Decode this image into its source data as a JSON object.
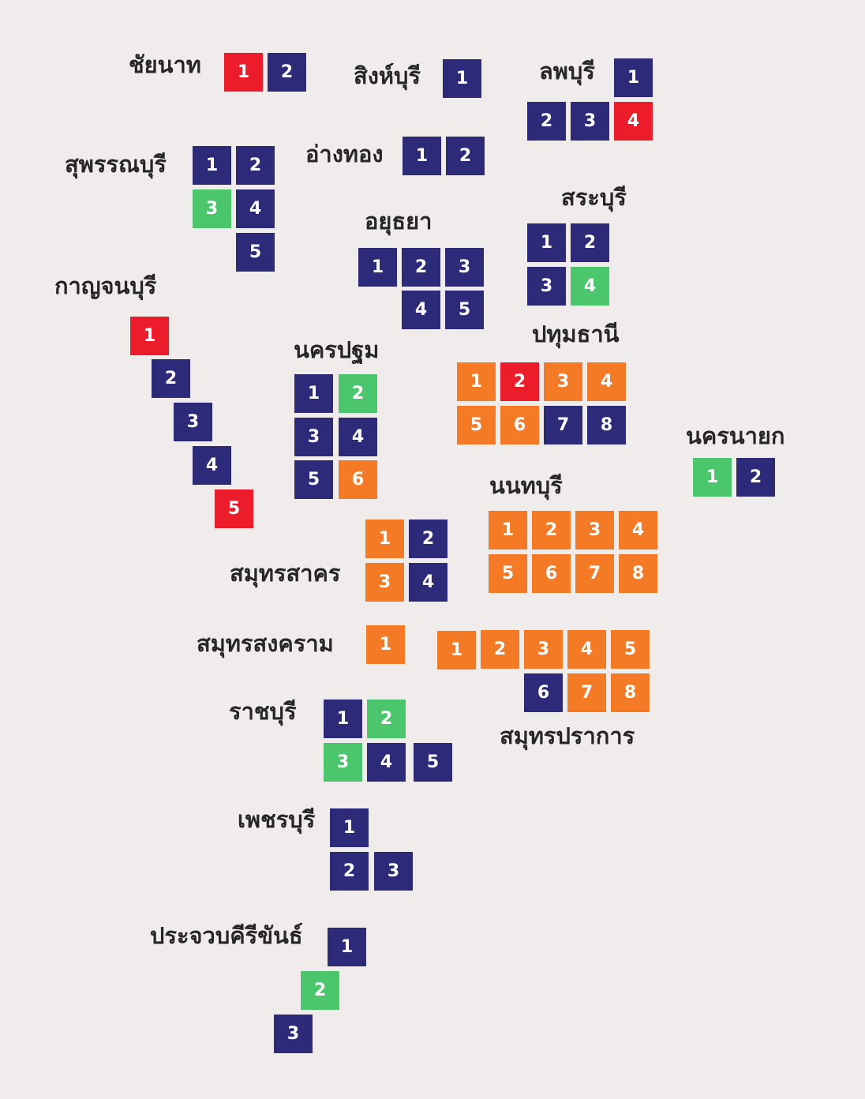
{
  "colors": {
    "background": "#f1ecec",
    "label": "#262626",
    "party_colors": {
      "navy": "#2e2a7a",
      "red": "#ec1c2b",
      "orange": "#f47a25",
      "green": "#4cc66c"
    }
  },
  "provinces": [
    {
      "name": "ชัยนาท",
      "districts": [
        {
          "number": "1",
          "color": "red"
        },
        {
          "number": "2",
          "color": "navy"
        }
      ]
    },
    {
      "name": "สิงห์บุรี",
      "districts": [
        {
          "number": "1",
          "color": "navy"
        }
      ]
    },
    {
      "name": "ลพบุรี",
      "districts": [
        {
          "number": "1",
          "color": "navy"
        },
        {
          "number": "2",
          "color": "navy"
        },
        {
          "number": "3",
          "color": "navy"
        },
        {
          "number": "4",
          "color": "red"
        }
      ]
    },
    {
      "name": "สุพรรณบุรี",
      "districts": [
        {
          "number": "1",
          "color": "navy"
        },
        {
          "number": "2",
          "color": "navy"
        },
        {
          "number": "3",
          "color": "green"
        },
        {
          "number": "4",
          "color": "navy"
        },
        {
          "number": "5",
          "color": "navy"
        }
      ]
    },
    {
      "name": "อ่างทอง",
      "districts": [
        {
          "number": "1",
          "color": "navy"
        },
        {
          "number": "2",
          "color": "navy"
        }
      ]
    },
    {
      "name": "สระบุรี",
      "districts": [
        {
          "number": "1",
          "color": "navy"
        },
        {
          "number": "2",
          "color": "navy"
        },
        {
          "number": "3",
          "color": "navy"
        },
        {
          "number": "4",
          "color": "green"
        }
      ]
    },
    {
      "name": "อยุธยา",
      "districts": [
        {
          "number": "1",
          "color": "navy"
        },
        {
          "number": "2",
          "color": "navy"
        },
        {
          "number": "3",
          "color": "navy"
        },
        {
          "number": "4",
          "color": "navy"
        },
        {
          "number": "5",
          "color": "navy"
        }
      ]
    },
    {
      "name": "กาญจนบุรี",
      "districts": [
        {
          "number": "1",
          "color": "red"
        },
        {
          "number": "2",
          "color": "navy"
        },
        {
          "number": "3",
          "color": "navy"
        },
        {
          "number": "4",
          "color": "navy"
        },
        {
          "number": "5",
          "color": "red"
        }
      ]
    },
    {
      "name": "นครปฐม",
      "districts": [
        {
          "number": "1",
          "color": "navy"
        },
        {
          "number": "2",
          "color": "green"
        },
        {
          "number": "3",
          "color": "navy"
        },
        {
          "number": "4",
          "color": "navy"
        },
        {
          "number": "5",
          "color": "navy"
        },
        {
          "number": "6",
          "color": "orange"
        }
      ]
    },
    {
      "name": "ปทุมธานี",
      "districts": [
        {
          "number": "1",
          "color": "orange"
        },
        {
          "number": "2",
          "color": "red"
        },
        {
          "number": "3",
          "color": "orange"
        },
        {
          "number": "4",
          "color": "orange"
        },
        {
          "number": "5",
          "color": "orange"
        },
        {
          "number": "6",
          "color": "orange"
        },
        {
          "number": "7",
          "color": "navy"
        },
        {
          "number": "8",
          "color": "navy"
        }
      ]
    },
    {
      "name": "นครนายก",
      "districts": [
        {
          "number": "1",
          "color": "green"
        },
        {
          "number": "2",
          "color": "navy"
        }
      ]
    },
    {
      "name": "นนทบุรี",
      "districts": [
        {
          "number": "1",
          "color": "orange"
        },
        {
          "number": "2",
          "color": "orange"
        },
        {
          "number": "3",
          "color": "orange"
        },
        {
          "number": "4",
          "color": "orange"
        },
        {
          "number": "5",
          "color": "orange"
        },
        {
          "number": "6",
          "color": "orange"
        },
        {
          "number": "7",
          "color": "orange"
        },
        {
          "number": "8",
          "color": "orange"
        }
      ]
    },
    {
      "name": "สมุทรสาคร",
      "districts": [
        {
          "number": "1",
          "color": "orange"
        },
        {
          "number": "2",
          "color": "navy"
        },
        {
          "number": "3",
          "color": "orange"
        },
        {
          "number": "4",
          "color": "navy"
        }
      ]
    },
    {
      "name": "สมุทรสงคราม",
      "districts": [
        {
          "number": "1",
          "color": "orange"
        }
      ]
    },
    {
      "name": "สมุทรปราการ",
      "districts": [
        {
          "number": "1",
          "color": "orange"
        },
        {
          "number": "2",
          "color": "orange"
        },
        {
          "number": "3",
          "color": "orange"
        },
        {
          "number": "4",
          "color": "orange"
        },
        {
          "number": "5",
          "color": "orange"
        },
        {
          "number": "6",
          "color": "navy"
        },
        {
          "number": "7",
          "color": "orange"
        },
        {
          "number": "8",
          "color": "orange"
        }
      ]
    },
    {
      "name": "ราชบุรี",
      "districts": [
        {
          "number": "1",
          "color": "navy"
        },
        {
          "number": "2",
          "color": "green"
        },
        {
          "number": "3",
          "color": "green"
        },
        {
          "number": "4",
          "color": "navy"
        },
        {
          "number": "5",
          "color": "navy"
        }
      ]
    },
    {
      "name": "เพชรบุรี",
      "districts": [
        {
          "number": "1",
          "color": "navy"
        },
        {
          "number": "2",
          "color": "navy"
        },
        {
          "number": "3",
          "color": "navy"
        }
      ]
    },
    {
      "name": "ประจวบคีรีขันธ์",
      "districts": [
        {
          "number": "1",
          "color": "navy"
        },
        {
          "number": "2",
          "color": "green"
        },
        {
          "number": "3",
          "color": "navy"
        }
      ]
    }
  ]
}
